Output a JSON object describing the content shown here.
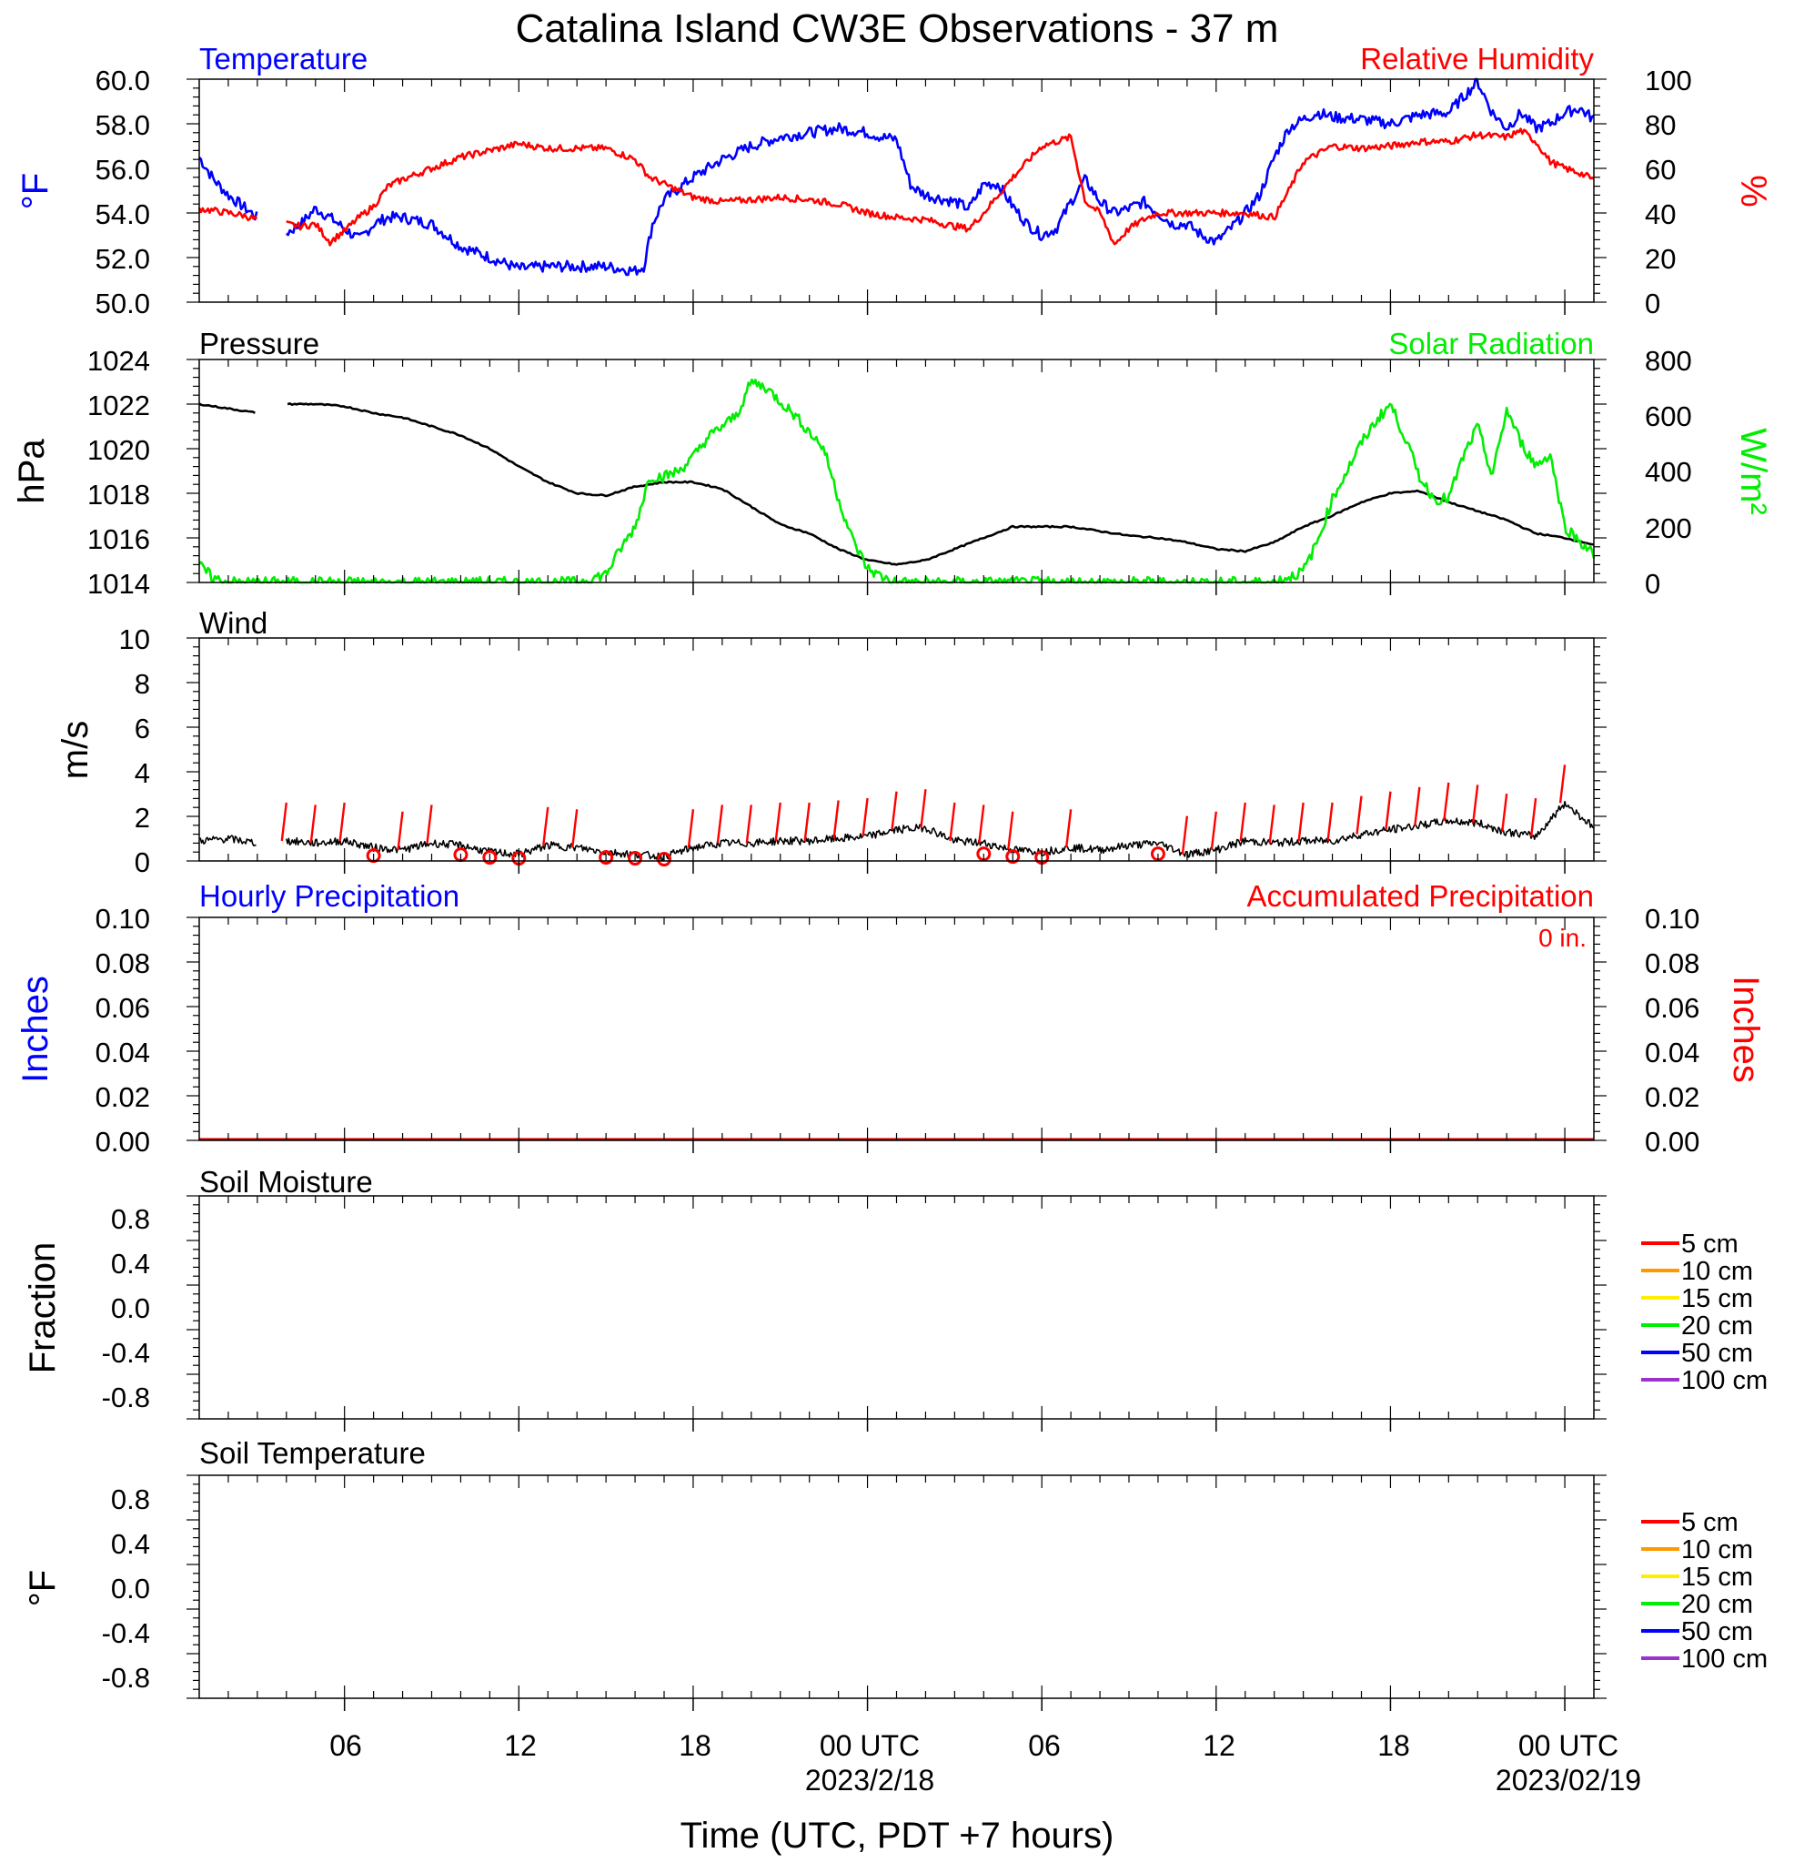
{
  "title": "Catalina Island CW3E Observations - 37 m",
  "x_axis": {
    "title": "Time (UTC, PDT +7 hours)",
    "tick_labels": [
      "06",
      "12",
      "18",
      "00 UTC",
      "06",
      "12",
      "18",
      "00 UTC"
    ],
    "date_labels": [
      "2023/2/18",
      "2023/02/19"
    ]
  },
  "colors": {
    "temperature": "#0000ff",
    "humidity": "#ff0000",
    "pressure": "#000000",
    "solar": "#00ee00",
    "wind": "#000000",
    "wind_barb": "#ff0000"
  },
  "panels": {
    "temp_rh": {
      "left_title": "Temperature",
      "right_title": "Relative Humidity",
      "y_left_label": "°F",
      "y_right_label": "%",
      "y_left_ticks": [
        "50.0",
        "52.0",
        "54.0",
        "56.0",
        "58.0",
        "60.0"
      ],
      "y_right_ticks": [
        "0",
        "20",
        "40",
        "60",
        "80",
        "100"
      ]
    },
    "pressure_solar": {
      "left_title": "Pressure",
      "right_title": "Solar Radiation",
      "y_left_label": "hPa",
      "y_right_label": "W/m²",
      "y_left_ticks": [
        "1014",
        "1016",
        "1018",
        "1020",
        "1022",
        "1024"
      ],
      "y_right_ticks": [
        "0",
        "200",
        "400",
        "600",
        "800"
      ]
    },
    "wind": {
      "left_title": "Wind",
      "y_left_label": "m/s",
      "y_left_ticks": [
        "0",
        "2",
        "4",
        "6",
        "8",
        "10"
      ]
    },
    "precip": {
      "left_title": "Hourly Precipitation",
      "right_title": "Accumulated Precipitation",
      "accum_text": "0 in.",
      "y_left_label": "Inches",
      "y_right_label": "Inches",
      "y_left_ticks": [
        "0.00",
        "0.02",
        "0.04",
        "0.06",
        "0.08",
        "0.10"
      ],
      "y_right_ticks": [
        "0.00",
        "0.02",
        "0.04",
        "0.06",
        "0.08",
        "0.10"
      ]
    },
    "soil_moisture": {
      "left_title": "Soil Moisture",
      "y_left_label": "Fraction",
      "y_left_ticks": [
        "-0.8",
        "-0.4",
        "0.0",
        "0.4",
        "0.8"
      ],
      "legend": [
        {
          "label": "5 cm",
          "color": "#ff0000"
        },
        {
          "label": "10 cm",
          "color": "#ff9900"
        },
        {
          "label": "15 cm",
          "color": "#ffee00"
        },
        {
          "label": "20 cm",
          "color": "#00ee00"
        },
        {
          "label": "50 cm",
          "color": "#0000ff"
        },
        {
          "label": "100 cm",
          "color": "#9933cc"
        }
      ]
    },
    "soil_temp": {
      "left_title": "Soil Temperature",
      "y_left_label": "°F",
      "y_left_ticks": [
        "-0.8",
        "-0.4",
        "0.0",
        "0.4",
        "0.8"
      ],
      "legend": [
        {
          "label": "5 cm",
          "color": "#ff0000"
        },
        {
          "label": "10 cm",
          "color": "#ff9900"
        },
        {
          "label": "15 cm",
          "color": "#ffee00"
        },
        {
          "label": "20 cm",
          "color": "#00ee00"
        },
        {
          "label": "50 cm",
          "color": "#0000ff"
        },
        {
          "label": "100 cm",
          "color": "#9933cc"
        }
      ]
    }
  },
  "chart_data": [
    {
      "type": "line",
      "title": "Temperature",
      "xlabel": "Time (UTC, PDT +7 hours)",
      "ylabel": "°F",
      "x_unit": "hours since 2023-02-17 00 UTC",
      "xlim": [
        1,
        49
      ],
      "ylim": [
        50,
        60
      ],
      "series": [
        {
          "name": "Temperature",
          "axis": "left",
          "x": [
            1,
            1.5,
            2,
            2.5,
            3,
            4,
            4.5,
            5,
            5.5,
            6,
            6.5,
            7,
            7.5,
            8,
            9,
            10,
            11,
            12,
            13,
            14,
            15,
            16,
            16.3,
            16.6,
            17,
            18,
            19,
            20,
            21,
            22,
            23,
            24,
            24.5,
            25,
            25.5,
            26,
            27,
            27.5,
            28,
            28.5,
            29,
            29.5,
            30,
            30.5,
            31,
            31.5,
            32,
            32.5,
            33,
            33.5,
            34,
            34.5,
            35,
            35.5,
            36,
            36.5,
            37,
            37.5,
            38,
            38.5,
            39,
            39.5,
            40,
            41,
            42,
            43,
            44,
            45,
            45.5,
            46,
            46.5,
            47,
            47.5,
            48,
            48.5,
            49
          ],
          "y": [
            56.5,
            55.5,
            54.8,
            54.3,
            53.8,
            53.1,
            53.5,
            54.2,
            53.8,
            53.3,
            52.8,
            53.5,
            53.8,
            53.8,
            53.5,
            52.5,
            52,
            51.5,
            51.6,
            51.6,
            51.6,
            51.4,
            51.6,
            53.5,
            54.6,
            55.6,
            56.4,
            57,
            57.4,
            57.6,
            57.8,
            57.6,
            57.4,
            57.3,
            55.2,
            54.8,
            54.5,
            54.2,
            55.3,
            55.3,
            54.3,
            53.5,
            53,
            53.3,
            54.5,
            55.5,
            54.5,
            54,
            54.2,
            54.5,
            54,
            53.5,
            53.5,
            53,
            52.7,
            53.3,
            54,
            54.8,
            56.5,
            57.8,
            58.2,
            58.5,
            58.3,
            58.2,
            58,
            58.4,
            58.5,
            59.9,
            58.5,
            57.8,
            58.5,
            57.8,
            58,
            58.5,
            58.7,
            58.2
          ],
          "gaps": [
            [
              3,
              4
            ]
          ]
        },
        {
          "name": "Relative Humidity",
          "axis": "right",
          "ylim": [
            0,
            100
          ],
          "x": [
            1,
            1.5,
            2,
            2.5,
            3,
            4,
            4.5,
            5,
            5.5,
            6,
            6.5,
            7,
            7.5,
            8,
            9,
            10,
            11,
            12,
            13,
            14,
            15,
            16,
            16.5,
            17,
            18,
            19,
            20,
            21,
            22,
            23,
            24,
            25,
            26,
            27,
            27.5,
            28,
            29,
            30,
            31,
            31.5,
            32,
            32.5,
            33,
            33.5,
            34,
            35,
            36,
            37,
            38,
            38.5,
            39,
            40,
            41,
            42,
            43,
            44,
            45,
            46,
            46.5,
            47,
            47.5,
            48,
            48.5,
            49
          ],
          "y": [
            42,
            41,
            40,
            39,
            37,
            35,
            34,
            35,
            27,
            32,
            38,
            43,
            52,
            55,
            60,
            65,
            68,
            71,
            69,
            69,
            69,
            64,
            56,
            53,
            47,
            45,
            46,
            47,
            46,
            44,
            40,
            38,
            37,
            34,
            33,
            40,
            56,
            70,
            74,
            45,
            40,
            26,
            33,
            37,
            40,
            40,
            40,
            40,
            38,
            50,
            63,
            70,
            69,
            70,
            72,
            72,
            75,
            74,
            77,
            72,
            63,
            60,
            58,
            55
          ],
          "gaps": [
            [
              3,
              4
            ]
          ]
        }
      ]
    },
    {
      "type": "line",
      "title": "Pressure",
      "xlabel": "Time (UTC, PDT +7 hours)",
      "ylabel": "hPa",
      "x_unit": "hours since 2023-02-17 00 UTC",
      "xlim": [
        1,
        49
      ],
      "ylim": [
        1014,
        1024
      ],
      "series": [
        {
          "name": "Pressure",
          "axis": "left",
          "x": [
            1,
            2,
            3,
            4,
            5,
            6,
            7,
            8,
            9,
            10,
            11,
            12,
            13,
            14,
            15,
            16,
            17,
            18,
            19,
            20,
            21,
            22,
            23,
            24,
            25,
            26,
            27,
            28,
            29,
            30,
            31,
            32,
            33,
            34,
            35,
            36,
            37,
            38,
            39,
            40,
            41,
            42,
            43,
            44,
            45,
            46,
            47,
            48,
            49
          ],
          "y": [
            1022,
            1021.8,
            1021.6,
            1022,
            1022,
            1021.9,
            1021.6,
            1021.4,
            1021,
            1020.6,
            1020,
            1019.2,
            1018.5,
            1018,
            1017.9,
            1018.3,
            1018.5,
            1018.5,
            1018.2,
            1017.4,
            1016.6,
            1016.2,
            1015.5,
            1015,
            1014.8,
            1015,
            1015.5,
            1016,
            1016.5,
            1016.5,
            1016.5,
            1016.3,
            1016.1,
            1016,
            1015.8,
            1015.5,
            1015.4,
            1015.8,
            1016.5,
            1017,
            1017.6,
            1018,
            1018.1,
            1017.6,
            1017.2,
            1016.8,
            1016.2,
            1016,
            1015.7
          ],
          "gaps": [
            [
              3,
              4
            ]
          ]
        },
        {
          "name": "Solar Radiation",
          "axis": "right",
          "ylim": [
            0,
            800
          ],
          "x": [
            1,
            1.5,
            2,
            3,
            4,
            14,
            15,
            15.5,
            16,
            16.5,
            17,
            17.5,
            18,
            18.5,
            19,
            19.5,
            20,
            20.5,
            21,
            21.5,
            22,
            22.5,
            23,
            23.5,
            24,
            24.5,
            25,
            26,
            38,
            39,
            39.5,
            40,
            40.5,
            41,
            41.5,
            42,
            42.5,
            43,
            43.5,
            44,
            44.5,
            45,
            45.5,
            46,
            46.5,
            47,
            47.5,
            48,
            48.5,
            49
          ],
          "y": [
            60,
            15,
            0,
            0,
            0,
            0,
            30,
            120,
            200,
            380,
            380,
            400,
            450,
            520,
            560,
            600,
            720,
            700,
            650,
            600,
            540,
            480,
            300,
            150,
            50,
            20,
            0,
            0,
            0,
            40,
            150,
            300,
            400,
            500,
            580,
            640,
            520,
            380,
            300,
            300,
            450,
            560,
            380,
            620,
            500,
            420,
            460,
            200,
            150,
            100
          ]
        }
      ]
    },
    {
      "type": "line",
      "title": "Wind",
      "xlabel": "Time (UTC, PDT +7 hours)",
      "ylabel": "m/s",
      "x_unit": "hours since 2023-02-17 00 UTC",
      "xlim": [
        1,
        49
      ],
      "ylim": [
        0,
        10
      ],
      "series": [
        {
          "name": "Wind speed",
          "x": [
            1,
            2,
            3,
            4,
            5,
            6,
            7,
            8,
            9,
            10,
            11,
            12,
            13,
            14,
            15,
            16,
            17,
            18,
            19,
            20,
            21,
            22,
            23,
            24,
            25,
            26,
            27,
            28,
            29,
            30,
            31,
            32,
            33,
            34,
            35,
            36,
            37,
            38,
            39,
            40,
            41,
            42,
            43,
            44,
            45,
            46,
            47,
            48,
            49
          ],
          "y": [
            0.9,
            1.0,
            0.8,
            0.9,
            0.8,
            0.9,
            0.6,
            0.5,
            0.8,
            0.7,
            0.4,
            0.3,
            0.7,
            0.6,
            0.4,
            0.3,
            0.2,
            0.6,
            0.8,
            0.8,
            0.9,
            0.9,
            1.0,
            1.1,
            1.4,
            1.5,
            0.9,
            0.8,
            0.5,
            0.4,
            0.6,
            0.5,
            0.7,
            0.8,
            0.3,
            0.5,
            0.9,
            0.8,
            0.9,
            0.9,
            1.2,
            1.4,
            1.6,
            1.8,
            1.7,
            1.3,
            1.1,
            2.6,
            1.5
          ],
          "gaps": [
            [
              3,
              4
            ]
          ]
        }
      ],
      "barb_hours": [
        4,
        5,
        6,
        8,
        9,
        13,
        14,
        18,
        19,
        20,
        21,
        22,
        23,
        24,
        25,
        26,
        27,
        28,
        29,
        31,
        35,
        36,
        37,
        38,
        39,
        40,
        41,
        42,
        43,
        44,
        45,
        46,
        47,
        48
      ],
      "calm_hours": [
        7,
        10,
        11,
        12,
        15,
        16,
        17,
        28,
        29,
        30,
        34
      ]
    },
    {
      "type": "line",
      "title": "Hourly Precipitation",
      "xlabel": "Time (UTC, PDT +7 hours)",
      "ylabel": "Inches",
      "x_unit": "hours since 2023-02-17 00 UTC",
      "xlim": [
        1,
        49
      ],
      "ylim": [
        0,
        0.1
      ],
      "series": [
        {
          "name": "Hourly Precipitation",
          "axis": "left",
          "x": [
            1,
            3
          ],
          "y": [
            0,
            0
          ]
        },
        {
          "name": "Hourly Precipitation",
          "axis": "left",
          "x": [
            4,
            49
          ],
          "y": [
            0,
            0
          ]
        },
        {
          "name": "Accumulated Precipitation",
          "axis": "right",
          "x": [
            1,
            49
          ],
          "y": [
            0,
            0
          ]
        }
      ]
    },
    {
      "type": "line",
      "title": "Soil Moisture",
      "ylabel": "Fraction",
      "ylim": [
        -1,
        1
      ],
      "series": []
    },
    {
      "type": "line",
      "title": "Soil Temperature",
      "ylabel": "°F",
      "ylim": [
        -1,
        1
      ],
      "series": []
    }
  ]
}
